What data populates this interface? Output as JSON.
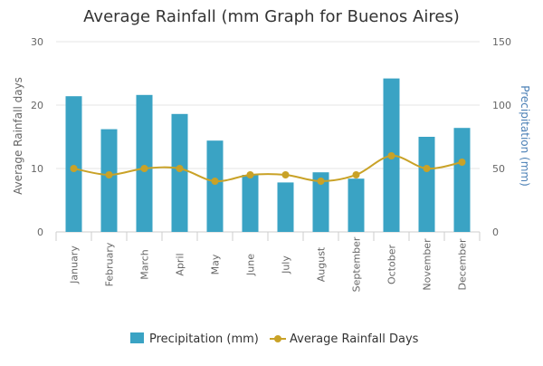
{
  "chart_data": {
    "type": "bar",
    "title": "Average Rainfall (mm Graph for Buenos Aires)",
    "categories": [
      "January",
      "February",
      "March",
      "April",
      "May",
      "June",
      "July",
      "August",
      "September",
      "October",
      "November",
      "December"
    ],
    "series": [
      {
        "name": "Precipitation (mm)",
        "type": "bar",
        "axis": "right",
        "color": "#3aa3c4",
        "values": [
          107,
          81,
          108,
          93,
          72,
          45,
          39,
          47,
          42,
          121,
          75,
          82
        ]
      },
      {
        "name": "Average Rainfall Days",
        "type": "line",
        "axis": "left",
        "color": "#c9a227",
        "values": [
          10,
          9,
          10,
          10,
          8,
          9,
          9,
          8,
          9,
          12,
          10,
          11
        ]
      }
    ],
    "y_left": {
      "label": "Average Rainfall days",
      "ticks": [
        "0",
        "10",
        "20",
        "30"
      ],
      "min": 0,
      "max": 30
    },
    "y_right": {
      "label": "Precipitation (mm)",
      "ticks": [
        "0",
        "50",
        "100",
        "150"
      ],
      "min": 0,
      "max": 150,
      "label_color": "#4a7fb5"
    },
    "grid": true,
    "legend_position": "bottom"
  }
}
